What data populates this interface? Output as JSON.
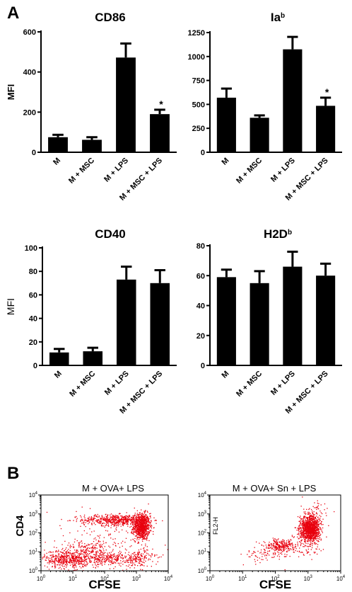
{
  "panel_labels": {
    "a": "A",
    "b": "B"
  },
  "colors": {
    "bar": "#000000",
    "dots": "#e8000e",
    "axis": "#000000"
  },
  "chart_data": [
    {
      "id": "cd86",
      "type": "bar",
      "title": "CD86",
      "title_sup": "",
      "ylabel": "MFI",
      "ylim": [
        0,
        600
      ],
      "yticks": [
        0,
        200,
        400,
        600
      ],
      "categories": [
        "M",
        "M + MSC",
        "M + LPS",
        "M + MSC + LPS"
      ],
      "values": [
        75,
        62,
        472,
        190
      ],
      "errors": [
        12,
        13,
        70,
        22
      ],
      "significance": [
        "",
        "",
        "",
        "*"
      ]
    },
    {
      "id": "iab",
      "type": "bar",
      "title": "Ia",
      "title_sup": "b",
      "ylabel": "",
      "ylim": [
        0,
        1250
      ],
      "yticks": [
        0,
        250,
        500,
        750,
        1000,
        1250
      ],
      "categories": [
        "M",
        "M + MSC",
        "M + LPS",
        "M + MSC + LPS"
      ],
      "values": [
        570,
        360,
        1075,
        485
      ],
      "errors": [
        95,
        25,
        130,
        85
      ],
      "significance": [
        "",
        "",
        "",
        "*"
      ]
    },
    {
      "id": "cd40",
      "type": "bar",
      "title": "CD40",
      "title_sup": "",
      "ylabel": "MFI",
      "ylim": [
        0,
        100
      ],
      "yticks": [
        0,
        20,
        40,
        60,
        80,
        100
      ],
      "categories": [
        "M",
        "M + MSC",
        "M + LPS",
        "M + MSC + LPS"
      ],
      "values": [
        11,
        12,
        73,
        70
      ],
      "errors": [
        3,
        3,
        11,
        11
      ],
      "significance": [
        "",
        "",
        "",
        ""
      ]
    },
    {
      "id": "h2db",
      "type": "bar",
      "title": "H2D",
      "title_sup": "b",
      "ylabel": "",
      "ylim": [
        0,
        80
      ],
      "yticks": [
        0,
        20,
        40,
        60,
        80
      ],
      "categories": [
        "M",
        "M + MSC",
        "M + LPS",
        "M + MSC + LPS"
      ],
      "values": [
        59,
        55,
        66,
        60
      ],
      "errors": [
        5,
        8,
        10,
        8
      ],
      "significance": [
        "",
        "",
        "",
        ""
      ]
    },
    {
      "id": "flow1",
      "type": "scatter",
      "title": "M + OVA+ LPS",
      "xlabel": "CFSE",
      "ylabel": "CD4",
      "xscale": "log",
      "yscale": "log",
      "xlim": [
        1,
        10000
      ],
      "ylim": [
        1,
        10000
      ],
      "tick_base": "10",
      "tick_exponents": [
        "0",
        "1",
        "2",
        "3",
        "4"
      ]
    },
    {
      "id": "flow2",
      "type": "scatter",
      "title": "M + OVA+ Sn + LPS",
      "xlabel": "CFSE",
      "ylabel": "FL2-H",
      "xscale": "log",
      "yscale": "log",
      "xlim": [
        1,
        10000
      ],
      "ylim": [
        1,
        10000
      ],
      "tick_base": "10",
      "tick_exponents": [
        "0",
        "1",
        "2",
        "3",
        "4"
      ]
    }
  ]
}
